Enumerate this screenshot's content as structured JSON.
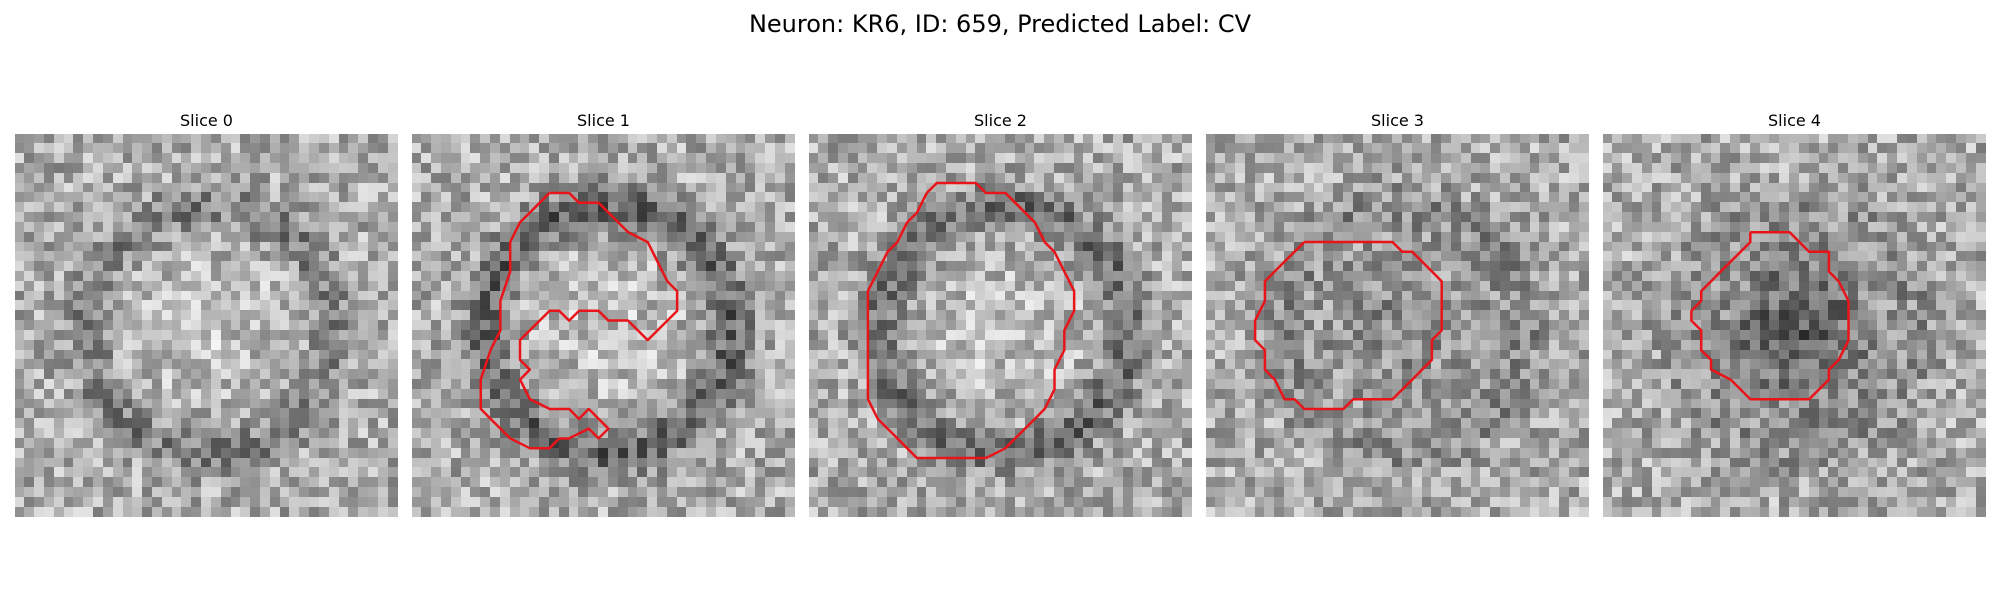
{
  "figure": {
    "title": "Neuron: KR6, ID: 659, Predicted Label: CV"
  },
  "panels": [
    {
      "title": "Slice 0",
      "seed": 11,
      "ring": 0.55,
      "dark_core": false,
      "contour": []
    },
    {
      "title": "Slice 1",
      "seed": 23,
      "ring": 0.85,
      "dark_core": false,
      "contour": [
        [
          14,
          6
        ],
        [
          16,
          6
        ],
        [
          17,
          7
        ],
        [
          19,
          7
        ],
        [
          21,
          9
        ],
        [
          22,
          10
        ],
        [
          24,
          11
        ],
        [
          25,
          13
        ],
        [
          26,
          15
        ],
        [
          27,
          16
        ],
        [
          27,
          18
        ],
        [
          26,
          19
        ],
        [
          25,
          20
        ],
        [
          24,
          21
        ],
        [
          23,
          20
        ],
        [
          22,
          19
        ],
        [
          20,
          19
        ],
        [
          19,
          18
        ],
        [
          17,
          18
        ],
        [
          16,
          19
        ],
        [
          15,
          18
        ],
        [
          14,
          18
        ],
        [
          13,
          19
        ],
        [
          12,
          20
        ],
        [
          11,
          21
        ],
        [
          11,
          23
        ],
        [
          12,
          24
        ],
        [
          11,
          25
        ],
        [
          12,
          27
        ],
        [
          14,
          28
        ],
        [
          16,
          28
        ],
        [
          17,
          29
        ],
        [
          18,
          28
        ],
        [
          19,
          29
        ],
        [
          20,
          30
        ],
        [
          19,
          31
        ],
        [
          18,
          30
        ],
        [
          16,
          31
        ],
        [
          15,
          31
        ],
        [
          14,
          32
        ],
        [
          12,
          32
        ],
        [
          10,
          31
        ],
        [
          9,
          30
        ],
        [
          8,
          29
        ],
        [
          7,
          28
        ],
        [
          7,
          25
        ],
        [
          8,
          22
        ],
        [
          9,
          20
        ],
        [
          9,
          17
        ],
        [
          10,
          14
        ],
        [
          10,
          11
        ],
        [
          11,
          9
        ],
        [
          12,
          8
        ],
        [
          13,
          7
        ],
        [
          14,
          6
        ]
      ]
    },
    {
      "title": "Slice 2",
      "seed": 37,
      "ring": 0.75,
      "dark_core": false,
      "contour": [
        [
          12,
          6
        ],
        [
          13,
          5
        ],
        [
          17,
          5
        ],
        [
          18,
          6
        ],
        [
          20,
          6
        ],
        [
          21,
          7
        ],
        [
          22,
          8
        ],
        [
          23,
          9
        ],
        [
          24,
          11
        ],
        [
          25,
          12
        ],
        [
          26,
          14
        ],
        [
          27,
          16
        ],
        [
          27,
          18
        ],
        [
          26,
          20
        ],
        [
          26,
          22
        ],
        [
          25,
          24
        ],
        [
          25,
          26
        ],
        [
          24,
          28
        ],
        [
          23,
          29
        ],
        [
          22,
          30
        ],
        [
          21,
          31
        ],
        [
          20,
          32
        ],
        [
          18,
          33
        ],
        [
          14,
          33
        ],
        [
          11,
          33
        ],
        [
          10,
          32
        ],
        [
          9,
          31
        ],
        [
          8,
          30
        ],
        [
          7,
          29
        ],
        [
          6,
          27
        ],
        [
          6,
          16
        ],
        [
          7,
          14
        ],
        [
          8,
          12
        ],
        [
          9,
          11
        ],
        [
          10,
          9
        ],
        [
          11,
          8
        ],
        [
          12,
          6
        ]
      ]
    },
    {
      "title": "Slice 3",
      "seed": 53,
      "ring": 0.3,
      "dark_core": false,
      "contour": [
        [
          10,
          11
        ],
        [
          19,
          11
        ],
        [
          20,
          12
        ],
        [
          21,
          12
        ],
        [
          22,
          13
        ],
        [
          23,
          14
        ],
        [
          24,
          15
        ],
        [
          24,
          20
        ],
        [
          23,
          21
        ],
        [
          23,
          23
        ],
        [
          22,
          24
        ],
        [
          21,
          25
        ],
        [
          20,
          26
        ],
        [
          19,
          27
        ],
        [
          16,
          27
        ],
        [
          15,
          27
        ],
        [
          14,
          28
        ],
        [
          10,
          28
        ],
        [
          9,
          27
        ],
        [
          8,
          27
        ],
        [
          7,
          25
        ],
        [
          6,
          24
        ],
        [
          6,
          22
        ],
        [
          5,
          21
        ],
        [
          5,
          19
        ],
        [
          6,
          17
        ],
        [
          6,
          15
        ],
        [
          7,
          14
        ],
        [
          8,
          13
        ],
        [
          9,
          12
        ],
        [
          10,
          11
        ]
      ]
    },
    {
      "title": "Slice 4",
      "seed": 71,
      "ring": 0.2,
      "dark_core": true,
      "contour": [
        [
          15,
          10
        ],
        [
          19,
          10
        ],
        [
          20,
          11
        ],
        [
          21,
          12
        ],
        [
          23,
          12
        ],
        [
          23,
          14
        ],
        [
          24,
          15
        ],
        [
          25,
          17
        ],
        [
          25,
          21
        ],
        [
          24,
          23
        ],
        [
          23,
          24
        ],
        [
          23,
          25
        ],
        [
          22,
          26
        ],
        [
          21,
          27
        ],
        [
          15,
          27
        ],
        [
          14,
          26
        ],
        [
          13,
          25
        ],
        [
          11,
          24
        ],
        [
          11,
          23
        ],
        [
          10,
          22
        ],
        [
          10,
          20
        ],
        [
          9,
          19
        ],
        [
          9,
          18
        ],
        [
          10,
          17
        ],
        [
          10,
          16
        ],
        [
          11,
          15
        ],
        [
          12,
          14
        ],
        [
          13,
          13
        ],
        [
          14,
          12
        ],
        [
          15,
          11
        ],
        [
          15,
          10
        ]
      ]
    }
  ],
  "grid": {
    "n": 39
  },
  "colors": {
    "contour": "#e8141a"
  }
}
